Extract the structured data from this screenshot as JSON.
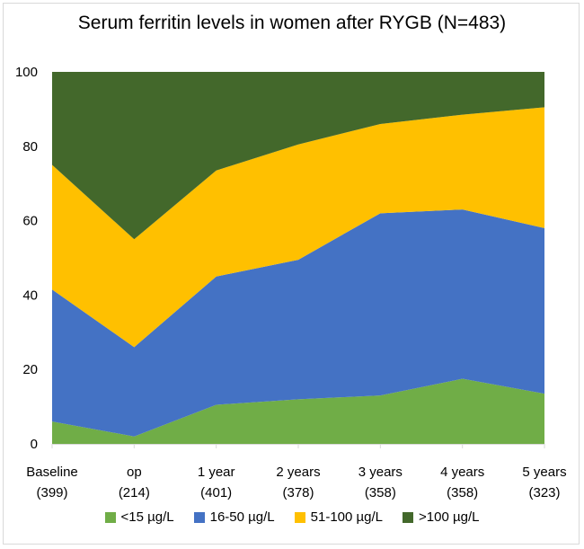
{
  "chart_data": {
    "type": "area",
    "stacked": true,
    "title": "Serum ferritin levels in women after RYGB (N=483)",
    "xlabel": "",
    "ylabel": "",
    "ylim": [
      0,
      100
    ],
    "yticks": [
      0,
      20,
      40,
      60,
      80,
      100
    ],
    "grid": false,
    "legend_position": "bottom",
    "categories": [
      {
        "label": "Baseline",
        "n": "(399)"
      },
      {
        "label": "op",
        "n": "(214)"
      },
      {
        "label": "1 year",
        "n": "(401)"
      },
      {
        "label": "2 years",
        "n": "(378)"
      },
      {
        "label": "3 years",
        "n": "(358)"
      },
      {
        "label": "4 years",
        "n": "(358)"
      },
      {
        "label": "5 years",
        "n": "(323)"
      }
    ],
    "series": [
      {
        "name": "<15 µg/L",
        "color": "#70ad47",
        "values": [
          6,
          2,
          10.5,
          12,
          13,
          17.5,
          13.5
        ]
      },
      {
        "name": "16-50 µg/L",
        "color": "#4472c4",
        "values": [
          35.5,
          24,
          34.5,
          37.5,
          49,
          45.5,
          44.5
        ]
      },
      {
        "name": "51-100 µg/L",
        "color": "#ffc000",
        "values": [
          33.5,
          29,
          28.5,
          31,
          24,
          25.5,
          32.5
        ]
      },
      {
        "name": ">100 µg/L",
        "color": "#43682b",
        "values": [
          25,
          45,
          26.5,
          19.5,
          14,
          11.5,
          9.5
        ]
      }
    ]
  }
}
